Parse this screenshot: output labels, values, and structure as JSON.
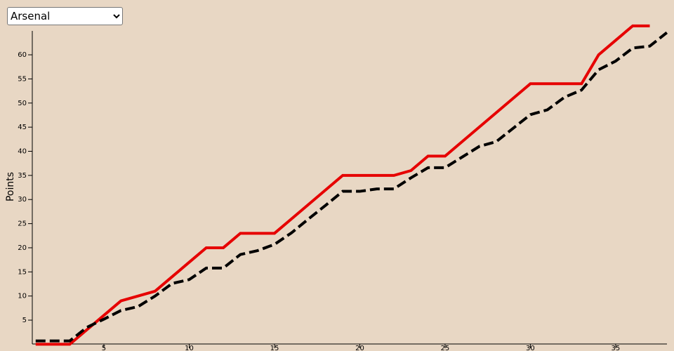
{
  "team_select": {
    "options": [
      "Arsenal"
    ]
  },
  "chart_data": {
    "type": "line",
    "y_label": "Points",
    "x": [
      1,
      2,
      3,
      4,
      5,
      6,
      7,
      8,
      9,
      10,
      11,
      12,
      13,
      14,
      15,
      16,
      17,
      18,
      19,
      20,
      21,
      22,
      23,
      24,
      25,
      26,
      27,
      28,
      29,
      30,
      31,
      32,
      33,
      34,
      35,
      36,
      37,
      38
    ],
    "xlim": [
      1,
      38
    ],
    "xticks": [
      5,
      10,
      15,
      20,
      25,
      30,
      35
    ],
    "ylim": [
      0,
      65
    ],
    "yticks": [
      5,
      10,
      15,
      20,
      25,
      30,
      35,
      40,
      45,
      50,
      55,
      60
    ],
    "series": [
      {
        "color": "#e60000",
        "dashed": false,
        "values": [
          0,
          0,
          0,
          3,
          6,
          9,
          10,
          11,
          14,
          17,
          20,
          20,
          23,
          23,
          23,
          26,
          29,
          32,
          35,
          35,
          35,
          35,
          36,
          39,
          39,
          42,
          45,
          48,
          51,
          54,
          54,
          54,
          54,
          60,
          63,
          66,
          66,
          null
        ]
      },
      {
        "color": "#000000",
        "dashed": true,
        "values": [
          0.7,
          0.7,
          0.7,
          3.5,
          5.2,
          7,
          7.8,
          10,
          12.6,
          13.4,
          15.8,
          15.8,
          18.6,
          19.4,
          20.7,
          23.1,
          26,
          28.8,
          31.7,
          31.7,
          32.2,
          32.2,
          34.5,
          36.6,
          36.6,
          38.8,
          41,
          42,
          44.8,
          47.6,
          48.6,
          51.2,
          52.7,
          56.9,
          58.7,
          61.4,
          61.8,
          64.6
        ]
      }
    ]
  }
}
